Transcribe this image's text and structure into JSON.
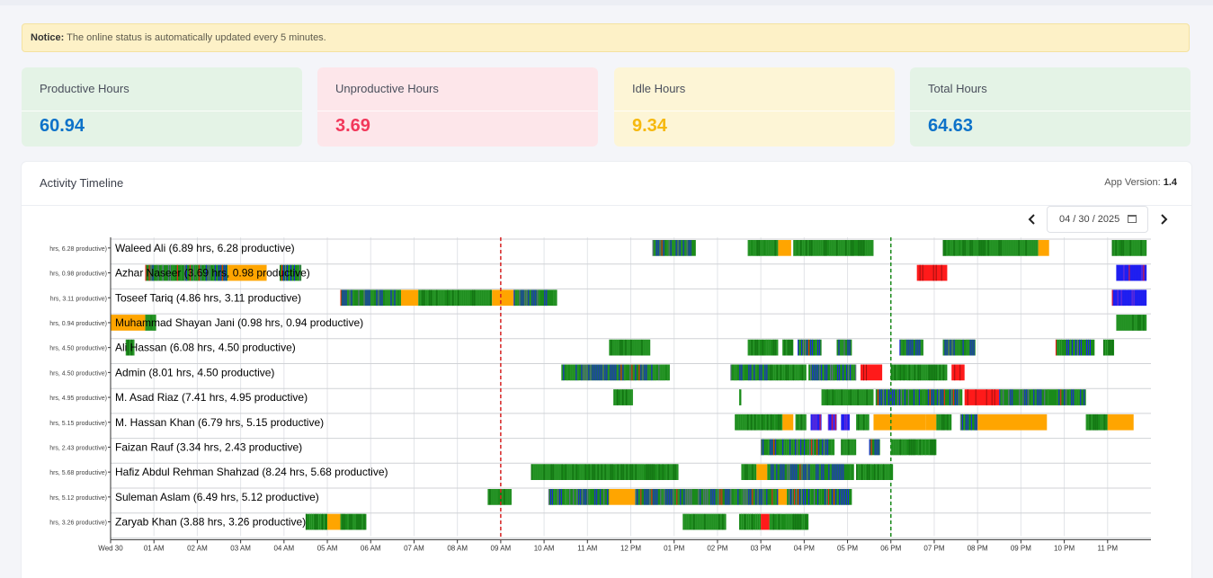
{
  "notice": {
    "bold": "Notice:",
    "text": "The online status is automatically updated every 5 minutes."
  },
  "cards": [
    {
      "label": "Productive Hours",
      "value": "60.94",
      "color": "#0d72c9",
      "bg": "#e4f3e6"
    },
    {
      "label": "Unproductive Hours",
      "value": "3.69",
      "color": "#f2385b",
      "bg": "#fde6ea"
    },
    {
      "label": "Idle Hours",
      "value": "9.34",
      "color": "#f6b90f",
      "bg": "#fdf5d6"
    },
    {
      "label": "Total Hours",
      "value": "64.63",
      "color": "#0d72c9",
      "bg": "#e4f3e6"
    }
  ],
  "panel": {
    "title": "Activity Timeline",
    "app_version_label": "App Version:",
    "app_version": "1.4"
  },
  "date_picker": {
    "value": "04 / 30 / 2025",
    "prev_icon": "chevron-left-icon",
    "next_icon": "chevron-right-icon"
  },
  "chart_data": {
    "type": "timeline",
    "colors": {
      "productive": "#1a8a1a",
      "unproductive": "#ff1a1a",
      "idle": "#ffa500",
      "neutral": "#1f1ff0",
      "marker_red": "#d62020",
      "marker_green": "#1a8a1a"
    },
    "x_ticks": [
      "Wed 30",
      "01 AM",
      "02 AM",
      "03 AM",
      "04 AM",
      "05 AM",
      "06 AM",
      "07 AM",
      "08 AM",
      "09 AM",
      "10 AM",
      "11 AM",
      "12 PM",
      "01 PM",
      "02 PM",
      "03 PM",
      "04 PM",
      "05 PM",
      "06 PM",
      "07 PM",
      "08 PM",
      "09 PM",
      "10 PM",
      "11 PM"
    ],
    "x_range_hours": [
      0,
      24
    ],
    "markers": [
      {
        "hour": 9.0,
        "color": "red"
      },
      {
        "hour": 18.0,
        "color": "green"
      }
    ],
    "rows": [
      {
        "axis_label": "hrs, 6.28 productive)",
        "name": "Waleed Ali (6.89 hrs, 6.28 productive)",
        "segments": [
          [
            12.5,
            13.5,
            "m"
          ],
          [
            14.7,
            15.4,
            "p"
          ],
          [
            15.4,
            15.7,
            "i"
          ],
          [
            15.75,
            17.6,
            "p"
          ],
          [
            19.2,
            21.4,
            "p"
          ],
          [
            21.4,
            21.65,
            "i"
          ],
          [
            23.1,
            23.9,
            "p"
          ]
        ]
      },
      {
        "axis_label": "hrs, 0.98 productive)",
        "name": "Azhar Naseer (3.69 hrs, 0.98 productive)",
        "segments": [
          [
            0.8,
            1.2,
            "m"
          ],
          [
            1.2,
            2.7,
            "m"
          ],
          [
            2.7,
            3.6,
            "i"
          ],
          [
            3.9,
            4.4,
            "m"
          ],
          [
            18.6,
            19.3,
            "u"
          ],
          [
            23.2,
            23.9,
            "b"
          ]
        ]
      },
      {
        "axis_label": "hrs, 3.11 productive)",
        "name": "Toseef Tariq (4.86 hrs, 3.11 productive)",
        "segments": [
          [
            5.3,
            6.7,
            "m"
          ],
          [
            6.7,
            7.1,
            "i"
          ],
          [
            7.1,
            8.8,
            "p"
          ],
          [
            8.8,
            9.3,
            "i"
          ],
          [
            9.3,
            10.3,
            "m"
          ],
          [
            23.1,
            23.9,
            "b"
          ]
        ]
      },
      {
        "axis_label": "hrs, 0.94 productive)",
        "name": "Muhammad Shayan Jani (0.98 hrs, 0.94 productive)",
        "segments": [
          [
            0.0,
            0.8,
            "i"
          ],
          [
            0.8,
            1.05,
            "p"
          ],
          [
            23.2,
            23.9,
            "p"
          ]
        ]
      },
      {
        "axis_label": "hrs, 4.50 productive)",
        "name": "Ali Hassan (6.08 hrs, 4.50 productive)",
        "segments": [
          [
            0.35,
            0.55,
            "p"
          ],
          [
            11.5,
            12.45,
            "p"
          ],
          [
            14.7,
            15.4,
            "p"
          ],
          [
            15.5,
            15.75,
            "p"
          ],
          [
            15.85,
            16.4,
            "m"
          ],
          [
            16.75,
            17.1,
            "m"
          ],
          [
            18.2,
            18.75,
            "m"
          ],
          [
            19.2,
            19.95,
            "m"
          ],
          [
            21.8,
            22.7,
            "m"
          ],
          [
            22.9,
            23.15,
            "p"
          ]
        ]
      },
      {
        "axis_label": "hrs, 4.50 productive)",
        "name": "Admin (8.01 hrs, 4.50 productive)",
        "segments": [
          [
            10.4,
            12.9,
            "m"
          ],
          [
            14.3,
            15.2,
            "m"
          ],
          [
            15.2,
            16.05,
            "p"
          ],
          [
            16.1,
            17.2,
            "m"
          ],
          [
            17.3,
            17.8,
            "u"
          ],
          [
            18.0,
            19.3,
            "p"
          ],
          [
            19.4,
            19.7,
            "u"
          ]
        ]
      },
      {
        "axis_label": "hrs, 4.95 productive)",
        "name": "M. Asad Riaz (7.41 hrs, 4.95 productive)",
        "segments": [
          [
            11.6,
            12.05,
            "p"
          ],
          [
            14.5,
            14.55,
            "p"
          ],
          [
            16.4,
            17.6,
            "p"
          ],
          [
            17.65,
            19.65,
            "m"
          ],
          [
            19.7,
            20.5,
            "u"
          ],
          [
            20.5,
            22.5,
            "m"
          ]
        ]
      },
      {
        "axis_label": "hrs, 5.15 productive)",
        "name": "M. Hassan Khan (6.79 hrs, 5.15 productive)",
        "segments": [
          [
            14.4,
            15.5,
            "p"
          ],
          [
            15.5,
            15.75,
            "i"
          ],
          [
            15.8,
            16.05,
            "p"
          ],
          [
            16.15,
            16.4,
            "b"
          ],
          [
            16.55,
            16.75,
            "b"
          ],
          [
            16.85,
            17.05,
            "b"
          ],
          [
            17.2,
            17.5,
            "p"
          ],
          [
            17.6,
            18.8,
            "i"
          ],
          [
            18.8,
            19.05,
            "i"
          ],
          [
            19.05,
            19.4,
            "p"
          ],
          [
            19.6,
            20.0,
            "m"
          ],
          [
            20.0,
            21.6,
            "i"
          ],
          [
            22.5,
            23.0,
            "p"
          ],
          [
            23.0,
            23.6,
            "i"
          ]
        ]
      },
      {
        "axis_label": "hrs, 2.43 productive)",
        "name": "Faizan Rauf (3.34 hrs, 2.43 productive)",
        "segments": [
          [
            15.0,
            16.7,
            "m"
          ],
          [
            16.85,
            17.2,
            "p"
          ],
          [
            17.5,
            17.75,
            "m"
          ],
          [
            18.0,
            19.05,
            "p"
          ]
        ]
      },
      {
        "axis_label": "hrs, 5.68 productive)",
        "name": "Hafiz Abdul Rehman Shahzad (8.24 hrs, 5.68 productive)",
        "segments": [
          [
            9.7,
            13.1,
            "p"
          ],
          [
            14.55,
            14.9,
            "p"
          ],
          [
            14.9,
            15.15,
            "i"
          ],
          [
            15.15,
            17.15,
            "m"
          ],
          [
            17.2,
            18.05,
            "p"
          ]
        ]
      },
      {
        "axis_label": "hrs, 5.12 productive)",
        "name": "Suleman Aslam (6.49 hrs, 5.12 productive)",
        "segments": [
          [
            8.7,
            9.25,
            "p"
          ],
          [
            10.1,
            10.5,
            "m"
          ],
          [
            10.5,
            11.5,
            "m"
          ],
          [
            11.5,
            12.1,
            "i"
          ],
          [
            12.1,
            15.4,
            "m"
          ],
          [
            15.4,
            15.6,
            "i"
          ],
          [
            15.6,
            17.1,
            "m"
          ]
        ]
      },
      {
        "axis_label": "hrs, 3.26 productive)",
        "name": "Zaryab Khan (3.88 hrs, 3.26 productive)",
        "segments": [
          [
            4.5,
            5.0,
            "p"
          ],
          [
            5.0,
            5.3,
            "i"
          ],
          [
            5.3,
            5.9,
            "p"
          ],
          [
            13.2,
            14.2,
            "p"
          ],
          [
            14.5,
            15.0,
            "p"
          ],
          [
            15.0,
            15.2,
            "u"
          ],
          [
            15.2,
            16.1,
            "p"
          ]
        ]
      }
    ]
  }
}
